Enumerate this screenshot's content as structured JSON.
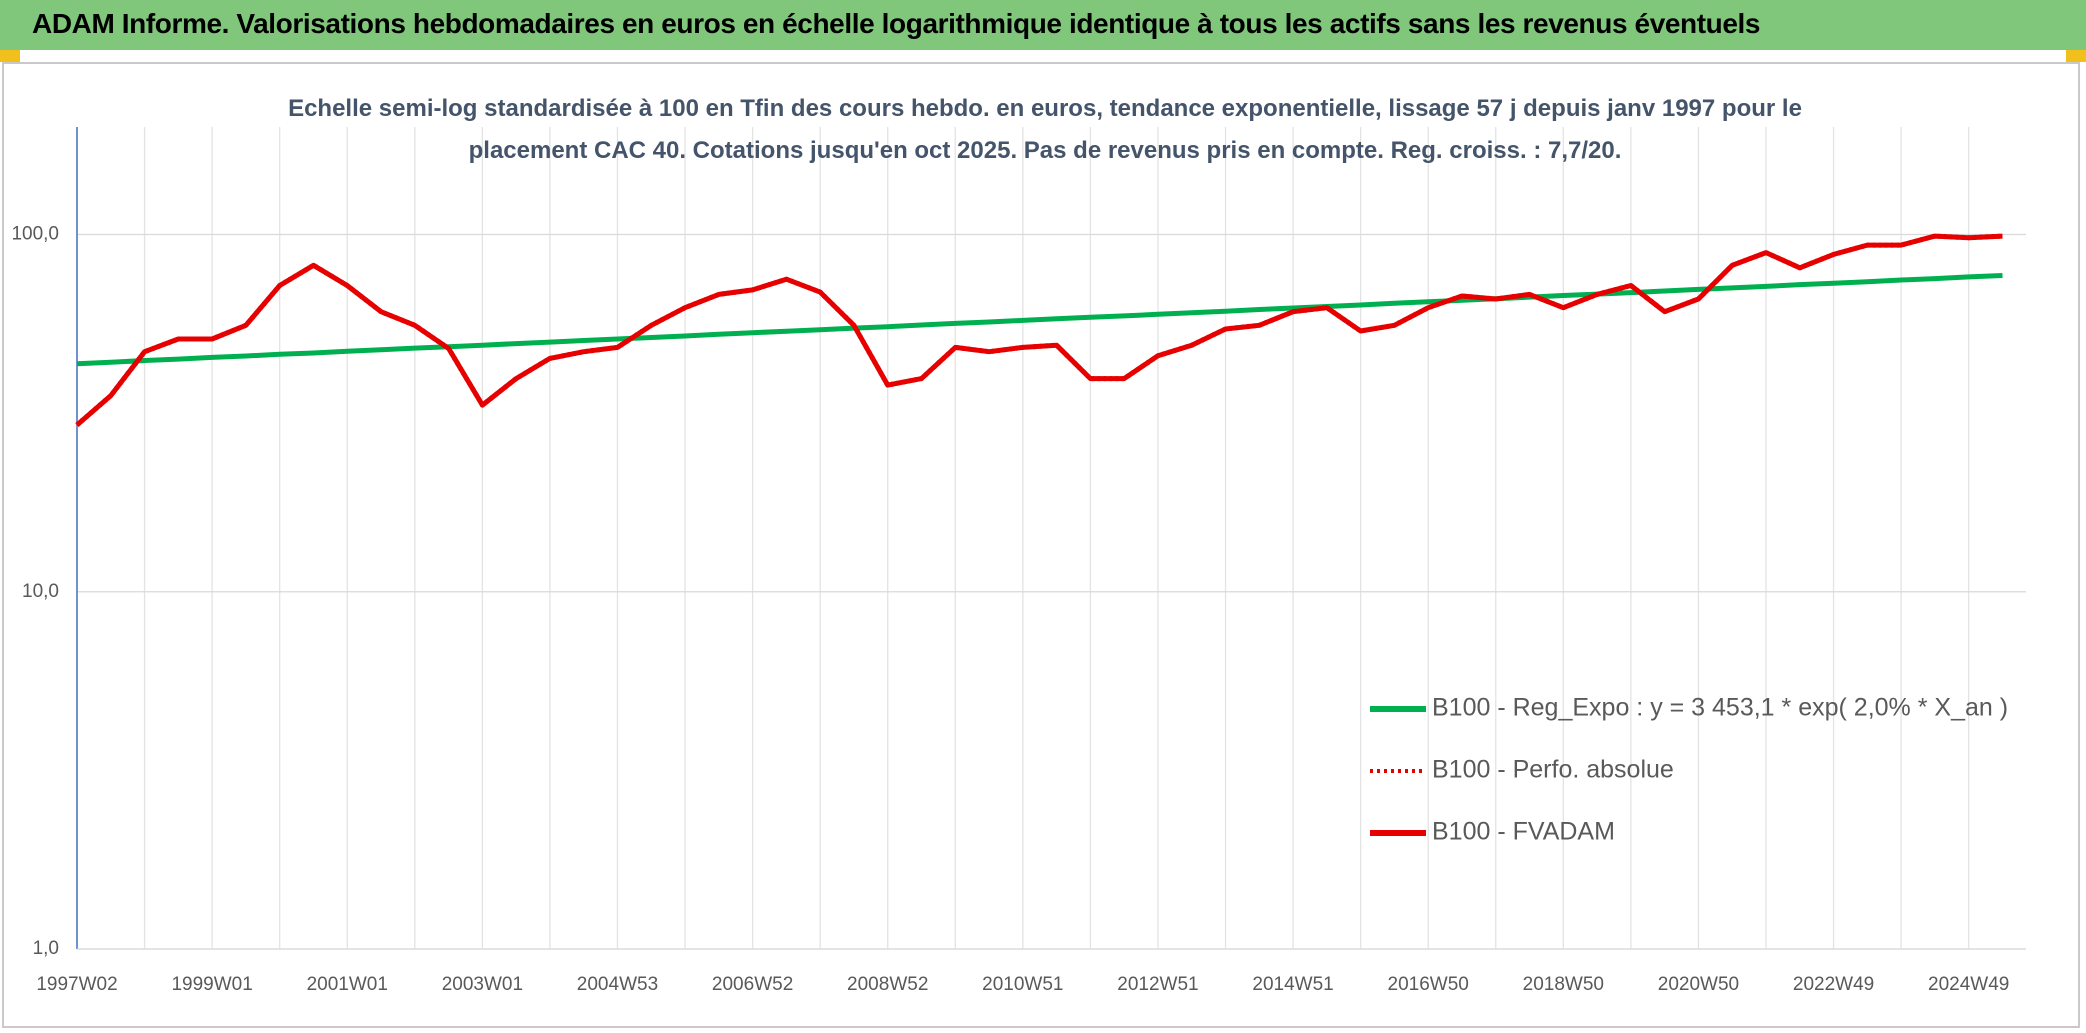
{
  "header": {
    "title": "ADAM Informe. Valorisations hebdomadaires en euros en échelle logarithmique identique à tous les actifs sans les revenus éventuels"
  },
  "chart_data": {
    "type": "line",
    "subtitle": "Echelle semi-log standardisée à 100 en Tfin des cours hebdo. en euros, tendance exponentielle, lissage 57 j depuis janv 1997 pour le placement CAC 40. Cotations jusqu'en oct 2025. Pas de revenus pris en compte. Reg. croiss. : 7,7/20.",
    "categories": [
      "1997W02",
      null,
      null,
      null,
      "1999W01",
      null,
      null,
      null,
      "2001W01",
      null,
      null,
      null,
      "2003W01",
      null,
      null,
      null,
      "2004W53",
      null,
      null,
      null,
      "2006W52",
      null,
      null,
      null,
      "2008W52",
      null,
      null,
      null,
      "2010W51",
      null,
      null,
      null,
      "2012W51",
      null,
      null,
      null,
      "2014W51",
      null,
      null,
      null,
      "2016W50",
      null,
      null,
      null,
      "2018W50",
      null,
      null,
      null,
      "2020W50",
      null,
      null,
      null,
      "2022W49",
      null,
      null,
      null,
      "2024W49",
      null
    ],
    "series": [
      {
        "name": "B100 - Reg_Expo : y = 3 453,1 * exp( 2,0% *  X_an )",
        "color": "#00b050",
        "style": "solid",
        "values": [
          43.5,
          43.9,
          44.4,
          44.8,
          45.3,
          45.7,
          46.2,
          46.6,
          47.1,
          47.6,
          48.1,
          48.5,
          49.0,
          49.5,
          50.0,
          50.5,
          51.0,
          51.5,
          52.0,
          52.6,
          53.1,
          53.6,
          54.1,
          54.7,
          55.2,
          55.8,
          56.4,
          56.9,
          57.5,
          58.1,
          58.7,
          59.2,
          59.8,
          60.4,
          61.0,
          61.7,
          62.3,
          62.9,
          63.5,
          64.2,
          64.8,
          65.5,
          66.1,
          66.8,
          67.5,
          68.1,
          68.8,
          69.5,
          70.2,
          70.9,
          71.6,
          72.4,
          73.1,
          73.8,
          74.6,
          75.3,
          76.1,
          76.8
        ]
      },
      {
        "name": "B100 - Perfo. absolue",
        "color": "#e60000",
        "style": "dotted",
        "values": [
          29.3,
          35.4,
          47,
          51,
          51,
          55.7,
          72,
          82,
          72,
          60.8,
          55.7,
          48,
          33.3,
          39.5,
          45,
          47,
          48.3,
          55.7,
          62.4,
          68,
          70,
          75,
          69,
          55.7,
          37.9,
          39.5,
          48.3,
          47,
          48.3,
          49,
          39.5,
          39.5,
          45.8,
          49,
          54.4,
          55.7,
          60.8,
          62.4,
          53.7,
          55.7,
          62.4,
          67.3,
          66,
          68,
          62.4,
          68,
          72,
          60.8,
          66,
          82,
          89,
          80.7,
          88,
          93.4,
          93.4,
          99,
          98,
          99
        ]
      },
      {
        "name": "B100 - FVADAM",
        "color": "#e60000",
        "style": "solid",
        "values": [
          29.3,
          35.4,
          47,
          51,
          51,
          55.7,
          72,
          82,
          72,
          60.8,
          55.7,
          48,
          33.3,
          39.5,
          45,
          47,
          48.3,
          55.7,
          62.4,
          68,
          70,
          75,
          69,
          55.7,
          37.9,
          39.5,
          48.3,
          47,
          48.3,
          49,
          39.5,
          39.5,
          45.8,
          49,
          54.4,
          55.7,
          60.8,
          62.4,
          53.7,
          55.7,
          62.4,
          67.3,
          66,
          68,
          62.4,
          68,
          72,
          60.8,
          66,
          82,
          89,
          80.7,
          88,
          93.4,
          93.4,
          99,
          98,
          99
        ]
      }
    ],
    "ylim": [
      1,
      200
    ],
    "log_y": true,
    "yticks": [
      {
        "value": 1,
        "label": "1,0"
      },
      {
        "value": 10,
        "label": "10,0"
      },
      {
        "value": 100,
        "label": "100,0"
      }
    ],
    "grid": true,
    "legend": "lower right"
  }
}
